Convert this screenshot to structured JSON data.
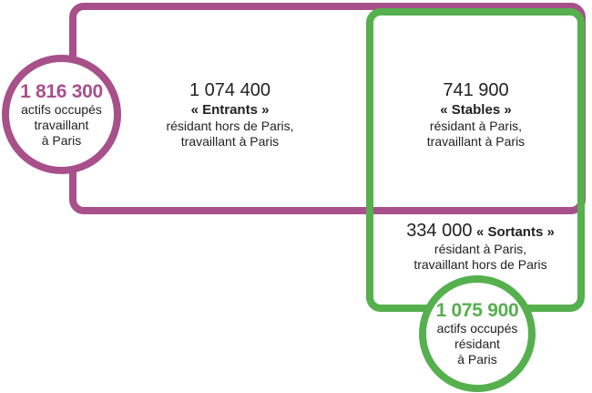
{
  "workers_circle": {
    "value": "1 816 300",
    "line1": "actifs occupés",
    "line2": "travaillant",
    "line3": "à Paris"
  },
  "entrants": {
    "value": "1 074 400",
    "label": "« Entrants »",
    "line1": "résidant hors de Paris,",
    "line2": "travaillant à Paris"
  },
  "stables": {
    "value": "741 900",
    "label": "« Stables »",
    "line1": "résidant à Paris,",
    "line2": "travaillant à Paris"
  },
  "sortants": {
    "value": "334 000",
    "label": "« Sortants »",
    "line1": "résidant à Paris,",
    "line2": "travaillant hors de Paris"
  },
  "residents_circle": {
    "value": "1 075 900",
    "line1": "actifs occupés",
    "line2": "résidant",
    "line3": "à Paris"
  },
  "colors": {
    "paris_workers": "#a8508a",
    "paris_residents": "#55b04d"
  }
}
